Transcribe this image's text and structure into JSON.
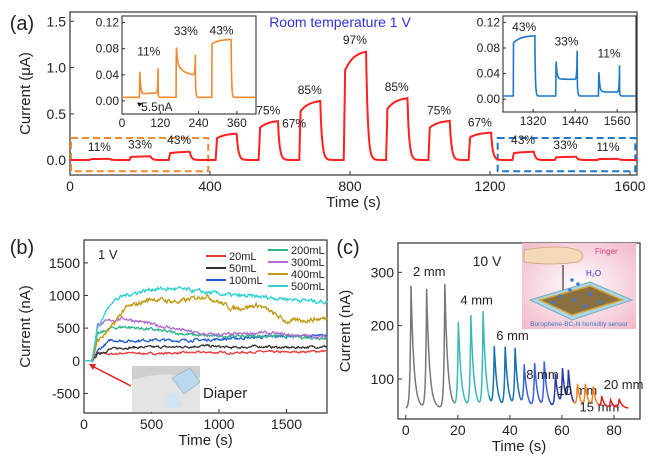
{
  "chart_data": [
    {
      "panel": "(a)",
      "type": "line",
      "annotation": "Room temperature  1 V",
      "xlabel": "Time (s)",
      "ylabel": "Current (μA)",
      "xlim": [
        0,
        1620
      ],
      "ylim": [
        -0.16,
        1.6
      ],
      "xticks": [
        0,
        400,
        800,
        1200,
        1600
      ],
      "yticks": [
        "0.0",
        "0.5",
        "1.0",
        "1.5"
      ],
      "color": "#ff2020",
      "baseline": 0.002,
      "pulses": [
        {
          "label": "11%",
          "start": 55,
          "end": 113,
          "value": 0.012
        },
        {
          "label": "33%",
          "start": 170,
          "end": 230,
          "value": 0.04
        },
        {
          "label": "43%",
          "start": 282,
          "end": 342,
          "value": 0.09
        },
        {
          "label": "67%",
          "start": 416,
          "end": 476,
          "value": 0.29
        },
        {
          "label": "75%",
          "start": 539,
          "end": 594,
          "value": 0.43
        },
        {
          "label": "85%",
          "start": 655,
          "end": 715,
          "value": 0.65
        },
        {
          "label": "97%",
          "start": 782,
          "end": 846,
          "value": 1.19
        },
        {
          "label": "85%",
          "start": 903,
          "end": 964,
          "value": 0.68
        },
        {
          "label": "75%",
          "start": 1024,
          "end": 1085,
          "value": 0.43
        },
        {
          "label": "67%",
          "start": 1139,
          "end": 1203,
          "value": 0.3
        },
        {
          "label": "43%",
          "start": 1264,
          "end": 1325,
          "value": 0.09
        },
        {
          "label": "33%",
          "start": 1385,
          "end": 1446,
          "value": 0.035
        },
        {
          "label": "11%",
          "start": 1507,
          "end": 1567,
          "value": 0.012
        }
      ],
      "insets": [
        {
          "color": "#f08a30",
          "xlim": [
            0,
            420
          ],
          "ylim": [
            -0.02,
            0.13
          ],
          "xticks": [
            "0",
            "120",
            "240",
            "360"
          ],
          "yticks": [
            "0.00",
            "0.04",
            "0.08",
            "0.12"
          ],
          "annotation": "5.5nA",
          "baseline": 0.0055,
          "pulses": [
            {
              "label": "11%",
              "start": 55,
              "end": 113,
              "spike_start": 0.062,
              "level_start": 0.01,
              "level_end": 0.012,
              "spike_end": 0.05
            },
            {
              "label": "33%",
              "start": 170,
              "end": 230,
              "spike_start": 0.093,
              "level_start": 0.06,
              "level_end": 0.04,
              "spike_end": 0.071
            },
            {
              "label": "43%",
              "start": 282,
              "end": 342,
              "spike_start": 0.088,
              "level_start": 0.087,
              "level_end": 0.094,
              "spike_end": 0.094
            }
          ]
        },
        {
          "color": "#1f78c8",
          "xlim": [
            1234,
            1614
          ],
          "ylim": [
            -0.02,
            0.13
          ],
          "xticks": [
            "1320",
            "1440",
            "1560"
          ],
          "yticks": [
            "0.00",
            "0.04",
            "0.08",
            "0.12"
          ],
          "baseline": 0.005,
          "pulses": [
            {
              "label": "43%",
              "start": 1264,
              "end": 1325,
              "spike_start": 0.085,
              "level_start": 0.088,
              "level_end": 0.099,
              "spike_end": 0.099
            },
            {
              "label": "33%",
              "start": 1385,
              "end": 1446,
              "spike_start": 0.072,
              "level_start": 0.032,
              "level_end": 0.031,
              "spike_end": 0.076
            },
            {
              "label": "11%",
              "start": 1507,
              "end": 1567,
              "spike_start": 0.057,
              "level_start": 0.012,
              "level_end": 0.011,
              "spike_end": 0.053
            }
          ]
        }
      ]
    },
    {
      "panel": "(b)",
      "type": "line",
      "annotation": "1 V",
      "photo_label": "Diaper",
      "xlabel": "Time (s)",
      "ylabel": "Current (nA)",
      "xlim": [
        0,
        1800
      ],
      "ylim": [
        -800,
        1850
      ],
      "xticks": [
        0,
        500,
        1000,
        1500
      ],
      "yticks": [
        -500,
        0,
        500,
        1000,
        1500
      ],
      "legend_position": "top-right",
      "x": [
        0,
        60,
        100,
        200,
        300,
        500,
        700,
        900,
        1100,
        1300,
        1500,
        1800
      ],
      "series": [
        {
          "name": "20mL",
          "color": "#f03a3a",
          "values": [
            0,
            0,
            120,
            100,
            120,
            110,
            120,
            130,
            120,
            140,
            130,
            150
          ]
        },
        {
          "name": "50mL",
          "color": "#333333",
          "values": [
            0,
            0,
            100,
            180,
            200,
            210,
            210,
            230,
            200,
            220,
            200,
            220
          ]
        },
        {
          "name": "100mL",
          "color": "#1f5fd0",
          "values": [
            0,
            0,
            150,
            320,
            300,
            320,
            310,
            320,
            340,
            360,
            380,
            380
          ]
        },
        {
          "name": "200mL",
          "color": "#2ab58a",
          "values": [
            0,
            0,
            400,
            500,
            520,
            480,
            420,
            380,
            380,
            380,
            370,
            350
          ]
        },
        {
          "name": "300mL",
          "color": "#b070d0",
          "values": [
            0,
            0,
            550,
            620,
            650,
            560,
            480,
            400,
            400,
            430,
            400,
            360
          ]
        },
        {
          "name": "400mL",
          "color": "#c09a10",
          "values": [
            0,
            0,
            300,
            500,
            800,
            950,
            900,
            1000,
            800,
            850,
            600,
            650
          ]
        },
        {
          "name": "500mL",
          "color": "#30d0d0",
          "values": [
            0,
            0,
            500,
            900,
            1000,
            1100,
            1100,
            1050,
            1000,
            980,
            950,
            900
          ]
        }
      ]
    },
    {
      "panel": "(c)",
      "type": "line",
      "annotation": "10 V",
      "xlabel": "Time (s)",
      "ylabel": "Current (nA)",
      "xlim": [
        -3,
        90
      ],
      "ylim": [
        25,
        355
      ],
      "xticks": [
        0,
        20,
        40,
        60,
        80
      ],
      "yticks": [
        100,
        200,
        300
      ],
      "baseline": 45,
      "illustration": {
        "finger_label": "Finger",
        "water_label": "H₂O",
        "sensor_label": "Borophene-BC₂N humidity sensor"
      },
      "groups": [
        {
          "name": "2 mm",
          "color": "#777777",
          "range": [
            0,
            18.5
          ],
          "peaks": [
            [
              2,
              275
            ],
            [
              8,
              268
            ],
            [
              15,
              278
            ]
          ]
        },
        {
          "name": "4 mm",
          "color": "#3ab8b8",
          "range": [
            18.5,
            32
          ],
          "peaks": [
            [
              20.2,
              205
            ],
            [
              25,
              218
            ],
            [
              29.7,
              225
            ]
          ]
        },
        {
          "name": "6 mm",
          "color": "#1a6fb0",
          "range": [
            32,
            44
          ],
          "peaks": [
            [
              34,
              158
            ],
            [
              38.2,
              158
            ],
            [
              42,
              155
            ]
          ]
        },
        {
          "name": "8 mm",
          "color": "#3a60d8",
          "range": [
            44,
            55.5
          ],
          "peaks": [
            [
              45.5,
              123
            ],
            [
              49.5,
              128
            ],
            [
              53.2,
              130
            ]
          ]
        },
        {
          "name": "10 mm",
          "color": "#2838a8",
          "range": [
            55.5,
            64.5
          ],
          "peaks": [
            [
              57.5,
              108
            ],
            [
              60.2,
              115
            ],
            [
              62.5,
              108
            ]
          ]
        },
        {
          "name": "15 mm",
          "color": "#f58220",
          "range": [
            64.5,
            74
          ],
          "peaks": [
            [
              66,
              88
            ],
            [
              69,
              88
            ],
            [
              72,
              83
            ]
          ]
        },
        {
          "name": "20 mm",
          "color": "#e02020",
          "range": [
            74,
            85.5
          ],
          "peaks": [
            [
              75.3,
              66
            ],
            [
              78.7,
              60
            ],
            [
              82,
              62
            ]
          ]
        }
      ]
    }
  ]
}
